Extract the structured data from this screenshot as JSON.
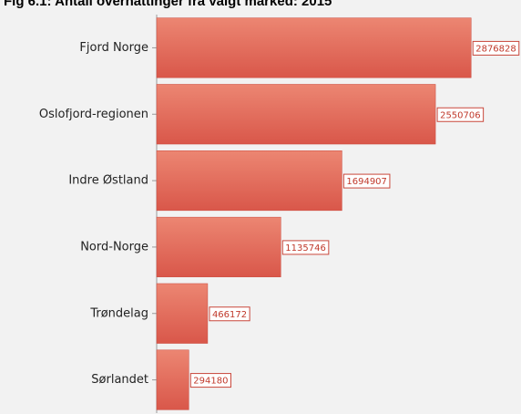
{
  "chart_data": {
    "type": "hbar",
    "title": "Fig 6.1: Antall overnattinger fra valgt marked: 2015",
    "categories": [
      "Fjord Norge",
      "Oslofjord-regionen",
      "Indre Østland",
      "Nord-Norge",
      "Trøndelag",
      "Sørlandet"
    ],
    "values": [
      2876828,
      2550706,
      1694907,
      1135746,
      466172,
      294180
    ],
    "color": "#e06a55",
    "xlim": [
      0,
      3000000
    ]
  }
}
